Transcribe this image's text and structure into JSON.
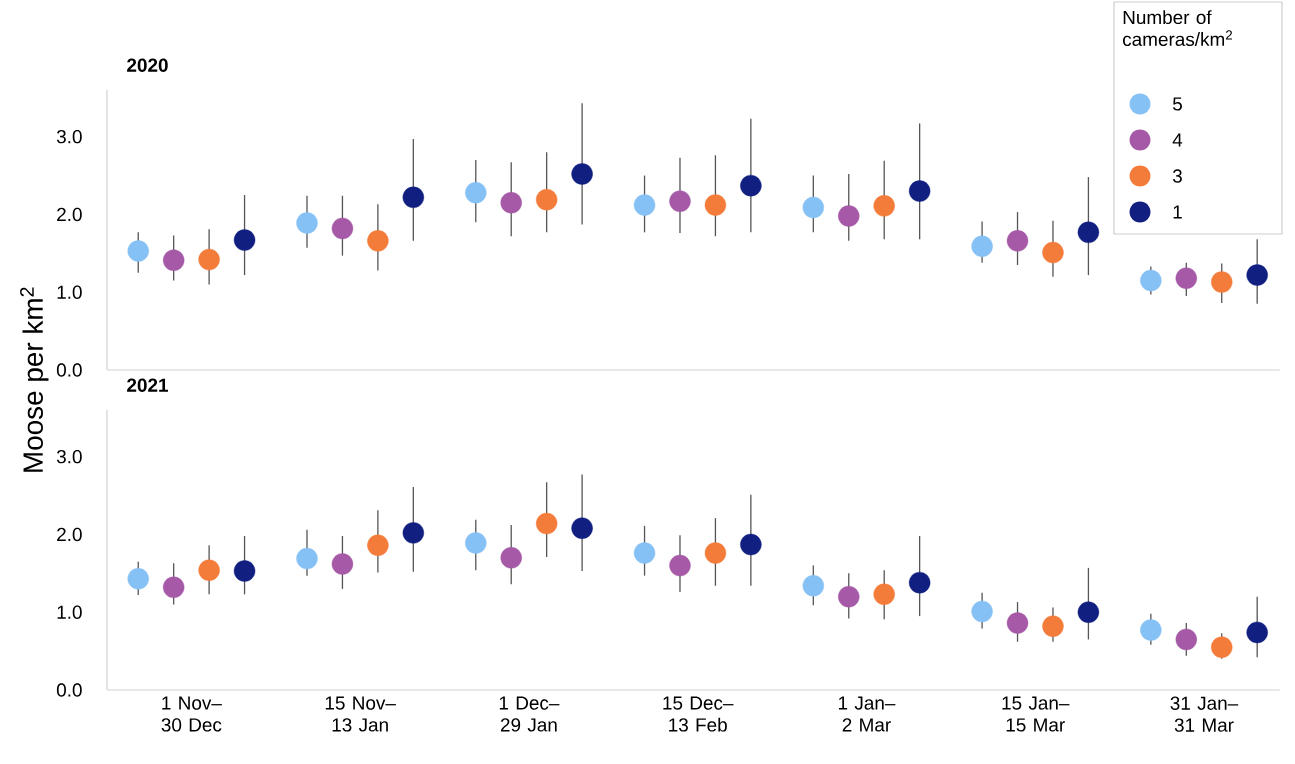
{
  "chart_data": [
    {
      "type": "scatter",
      "title": "2020",
      "ylabel": "Moose per km$^{2}$",
      "legend": "top right",
      "legend_title": "Number of cameras/km$^{2}$",
      "tick_labels": "y",
      "marker": "circle",
      "ylim": [
        0,
        3.6
      ],
      "yticks": [
        {
          "value": 0,
          "label": "0.0"
        },
        {
          "value": 1,
          "label": "1.0"
        },
        {
          "value": 2,
          "label": "2.0"
        },
        {
          "value": 3,
          "label": "3.0"
        }
      ],
      "series": [
        {
          "name": "5",
          "color": "#85c1f5",
          "values": [
            1.53,
            1.89,
            2.28,
            2.12,
            2.09,
            1.59,
            1.15
          ],
          "errors": [
            [
              1.25,
              1.77
            ],
            [
              1.57,
              2.24
            ],
            [
              1.9,
              2.7
            ],
            [
              1.77,
              2.5
            ],
            [
              1.77,
              2.5
            ],
            [
              1.38,
              1.91
            ],
            [
              0.97,
              1.33
            ]
          ]
        },
        {
          "name": "4",
          "color": "#a559a6",
          "values": [
            1.41,
            1.82,
            2.15,
            2.17,
            1.98,
            1.66,
            1.18
          ],
          "errors": [
            [
              1.15,
              1.73
            ],
            [
              1.47,
              2.24
            ],
            [
              1.72,
              2.67
            ],
            [
              1.76,
              2.73
            ],
            [
              1.66,
              2.52
            ],
            [
              1.35,
              2.03
            ],
            [
              0.95,
              1.38
            ]
          ]
        },
        {
          "name": "3",
          "color": "#f47c3b",
          "values": [
            1.42,
            1.66,
            2.19,
            2.12,
            2.11,
            1.51,
            1.13
          ],
          "errors": [
            [
              1.1,
              1.81
            ],
            [
              1.28,
              2.13
            ],
            [
              1.77,
              2.8
            ],
            [
              1.72,
              2.76
            ],
            [
              1.68,
              2.69
            ],
            [
              1.2,
              1.92
            ],
            [
              0.86,
              1.37
            ]
          ]
        },
        {
          "name": "1",
          "color": "#101f80",
          "values": [
            1.67,
            2.22,
            2.52,
            2.37,
            2.3,
            1.77,
            1.22
          ],
          "errors": [
            [
              1.22,
              2.25
            ],
            [
              1.66,
              2.97
            ],
            [
              1.87,
              3.43
            ],
            [
              1.77,
              3.23
            ],
            [
              1.68,
              3.17
            ],
            [
              1.22,
              2.48
            ],
            [
              0.85,
              1.68
            ]
          ]
        }
      ]
    },
    {
      "type": "scatter",
      "title": "2021",
      "marker": "circle",
      "categories": [
        "1 Nov– 30 Dec",
        "15 Nov– 13 Jan",
        "1 Dec– 29 Jan",
        "15 Dec– 13 Feb",
        "1 Jan– 2 Mar",
        "15 Jan– 15 Mar",
        "31 Jan– 31 Mar"
      ],
      "ylim": [
        0,
        3.6
      ],
      "yticks": [
        {
          "value": 0,
          "label": "0.0"
        },
        {
          "value": 1,
          "label": "1.0"
        },
        {
          "value": 2,
          "label": "2.0"
        },
        {
          "value": 3,
          "label": "3.0"
        }
      ],
      "series": [
        {
          "color": "#85c1f5",
          "values": [
            1.43,
            1.69,
            1.89,
            1.76,
            1.34,
            1.01,
            0.77
          ],
          "errors": [
            [
              1.22,
              1.65
            ],
            [
              1.47,
              2.06
            ],
            [
              1.54,
              2.19
            ],
            [
              1.47,
              2.11
            ],
            [
              1.09,
              1.6
            ],
            [
              0.79,
              1.25
            ],
            [
              0.58,
              0.98
            ]
          ]
        },
        {
          "color": "#a559a6",
          "values": [
            1.32,
            1.62,
            1.7,
            1.6,
            1.2,
            0.86,
            0.65
          ],
          "errors": [
            [
              1.1,
              1.63
            ],
            [
              1.3,
              1.98
            ],
            [
              1.36,
              2.12
            ],
            [
              1.26,
              1.99
            ],
            [
              0.92,
              1.5
            ],
            [
              0.62,
              1.13
            ],
            [
              0.44,
              0.86
            ]
          ]
        },
        {
          "color": "#f47c3b",
          "values": [
            1.54,
            1.86,
            2.14,
            1.76,
            1.23,
            0.82,
            0.55
          ],
          "errors": [
            [
              1.23,
              1.86
            ],
            [
              1.51,
              2.31
            ],
            [
              1.71,
              2.67
            ],
            [
              1.34,
              2.21
            ],
            [
              0.91,
              1.54
            ],
            [
              0.62,
              1.06
            ],
            [
              0.4,
              0.73
            ]
          ]
        },
        {
          "color": "#101f80",
          "values": [
            1.53,
            2.02,
            2.08,
            1.87,
            1.38,
            1.0,
            0.74
          ],
          "errors": [
            [
              1.23,
              1.98
            ],
            [
              1.52,
              2.61
            ],
            [
              1.53,
              2.77
            ],
            [
              1.34,
              2.51
            ],
            [
              0.95,
              1.98
            ],
            [
              0.65,
              1.57
            ],
            [
              0.42,
              1.2
            ]
          ]
        }
      ]
    }
  ]
}
